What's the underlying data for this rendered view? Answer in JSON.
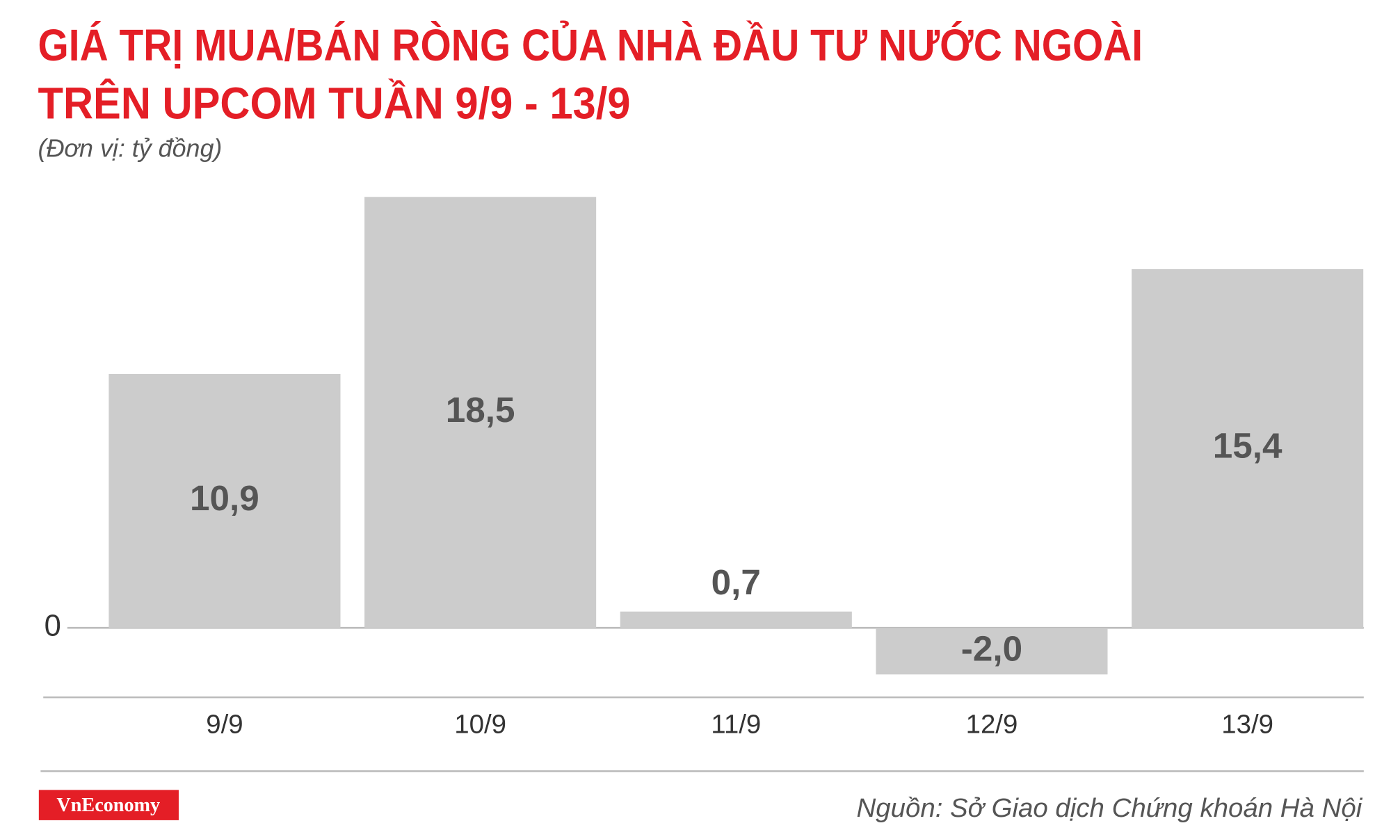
{
  "chart_data": {
    "type": "bar",
    "title": [
      "GIÁ TRỊ MUA/BÁN RÒNG CỦA NHÀ ĐẦU TƯ NƯỚC NGOÀI",
      "TRÊN UPCOM TUẦN 9/9 - 13/9"
    ],
    "subtitle": "(Đơn vị: tỷ đồng)",
    "categories": [
      "9/9",
      "10/9",
      "11/9",
      "12/9",
      "13/9"
    ],
    "values": [
      10.9,
      18.5,
      0.7,
      -2.0,
      15.4
    ],
    "value_labels": [
      "10,9",
      "18,5",
      "0,7",
      "-2,0",
      "15,4"
    ],
    "color": "#cccccc",
    "ylim": [
      -3,
      19
    ],
    "yticks": [
      0
    ],
    "source": "Nguồn: Sở Giao dịch Chứng khoán Hà Nội",
    "logo": "VnEconomy"
  }
}
